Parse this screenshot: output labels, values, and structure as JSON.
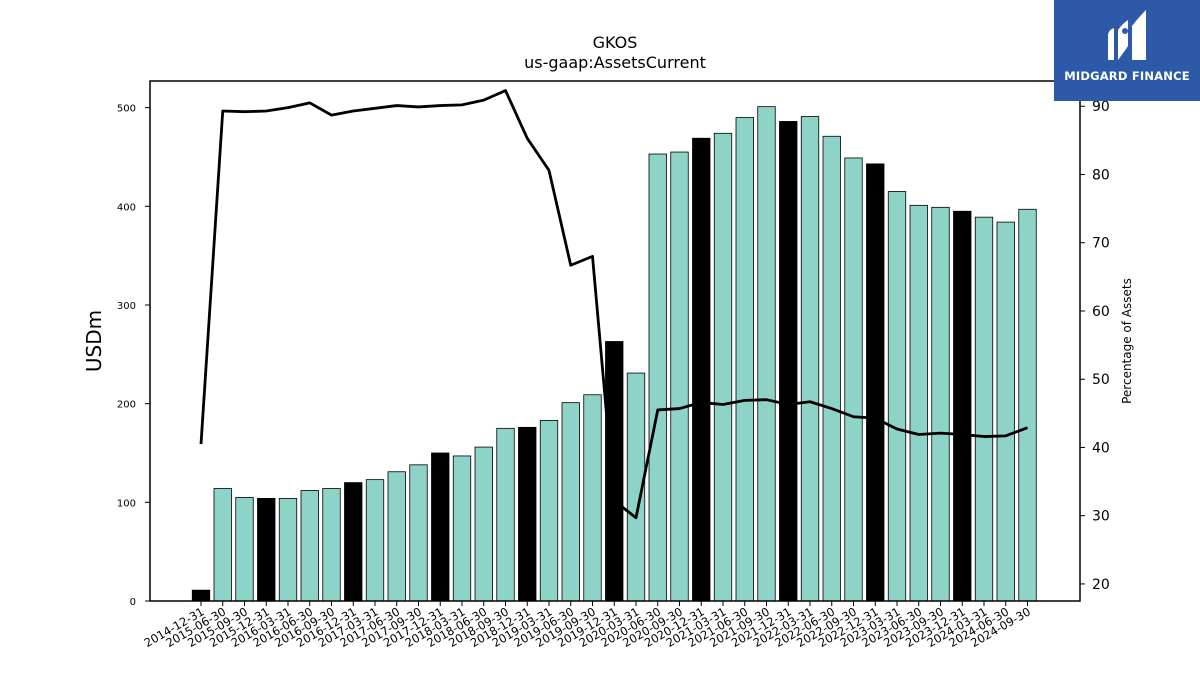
{
  "brand": {
    "name": "MIDGARD FINANCE",
    "color": "#2c5aa8"
  },
  "chart_data": {
    "type": "bar",
    "title": "GKOS",
    "subtitle": "us-gaap:AssetsCurrent",
    "ylabel": "USDm",
    "y2label": "Percentage of Assets",
    "ylim": [
      0,
      527
    ],
    "y2lim": [
      17.5,
      93.7
    ],
    "yticks": [
      0,
      100,
      200,
      300,
      400,
      500
    ],
    "y2ticks": [
      20,
      30,
      40,
      50,
      60,
      70,
      80,
      90
    ],
    "grid": false,
    "colors": {
      "bar": "#8dd3c7",
      "bar_highlight": "#000000",
      "line": "#000000"
    },
    "categories": [
      "2014-12-31",
      "2015-06-30",
      "2015-09-30",
      "2015-12-31",
      "2016-03-31",
      "2016-06-30",
      "2016-09-30",
      "2016-12-31",
      "2017-03-31",
      "2017-06-30",
      "2017-09-30",
      "2017-12-31",
      "2018-03-31",
      "2018-06-30",
      "2018-09-30",
      "2018-12-31",
      "2019-03-31",
      "2019-06-30",
      "2019-09-30",
      "2019-12-31",
      "2020-03-31",
      "2020-06-30",
      "2020-09-30",
      "2020-12-31",
      "2021-03-31",
      "2021-06-30",
      "2021-09-30",
      "2021-12-31",
      "2022-03-31",
      "2022-06-30",
      "2022-09-30",
      "2022-12-31",
      "2023-03-31",
      "2023-06-30",
      "2023-09-30",
      "2023-12-31",
      "2024-03-31",
      "2024-06-30",
      "2024-09-30"
    ],
    "series": [
      {
        "type": "bar",
        "values": [
          11,
          114,
          105,
          104,
          104,
          112,
          114,
          120,
          123,
          131,
          138,
          150,
          147,
          156,
          175,
          176,
          183,
          201,
          209,
          263,
          231,
          453,
          455,
          469,
          474,
          490,
          501,
          486,
          491,
          471,
          449,
          443,
          415,
          401,
          399,
          395,
          389,
          384,
          397
        ],
        "highlight": [
          true,
          false,
          false,
          true,
          false,
          false,
          false,
          true,
          false,
          false,
          false,
          true,
          false,
          false,
          false,
          true,
          false,
          false,
          false,
          true,
          false,
          false,
          false,
          true,
          false,
          false,
          false,
          true,
          false,
          false,
          false,
          true,
          false,
          false,
          false,
          true,
          false,
          false,
          false
        ]
      },
      {
        "type": "line",
        "axis": "right",
        "values": [
          40.5,
          89.3,
          89.2,
          89.3,
          89.8,
          90.5,
          88.7,
          89.3,
          89.7,
          90.1,
          89.9,
          90.1,
          90.2,
          90.9,
          92.3,
          85.3,
          80.6,
          66.7,
          68.0,
          32.2,
          29.7,
          45.5,
          45.7,
          46.6,
          46.3,
          46.9,
          47.0,
          46.3,
          46.7,
          45.7,
          44.5,
          44.3,
          42.7,
          41.9,
          42.1,
          41.9,
          41.6,
          41.7,
          42.9
        ]
      }
    ]
  }
}
